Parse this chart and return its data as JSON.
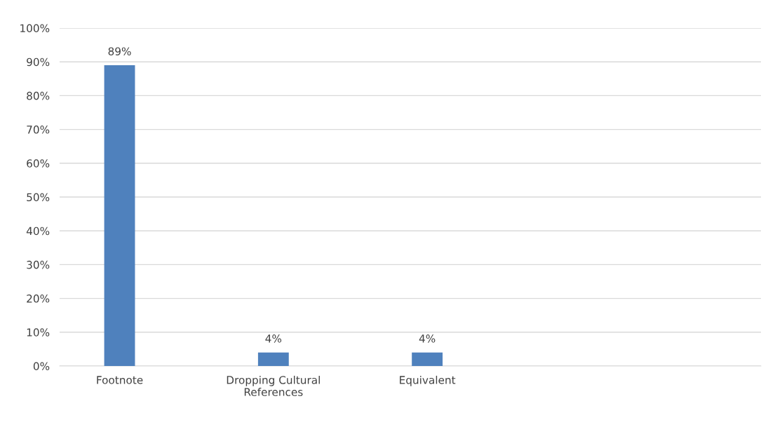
{
  "chart_data": {
    "type": "bar",
    "categories": [
      "Footnote",
      "Dropping Cultural References",
      "Equivalent"
    ],
    "values": [
      89,
      4,
      4
    ],
    "value_labels": [
      "89%",
      "4%",
      "4%"
    ],
    "color": "#4f81bd",
    "ylim": [
      0,
      100
    ],
    "yticks": [
      {
        "value": 0,
        "label": "0%"
      },
      {
        "value": 10,
        "label": "10%"
      },
      {
        "value": 20,
        "label": "20%"
      },
      {
        "value": 30,
        "label": "30%"
      },
      {
        "value": 40,
        "label": "40%"
      },
      {
        "value": 50,
        "label": "50%"
      },
      {
        "value": 60,
        "label": "60%"
      },
      {
        "value": 70,
        "label": "70%"
      },
      {
        "value": 80,
        "label": "80%"
      },
      {
        "value": 90,
        "label": "90%"
      },
      {
        "value": 100,
        "label": "100%"
      }
    ],
    "grid": "y",
    "legend": false
  }
}
